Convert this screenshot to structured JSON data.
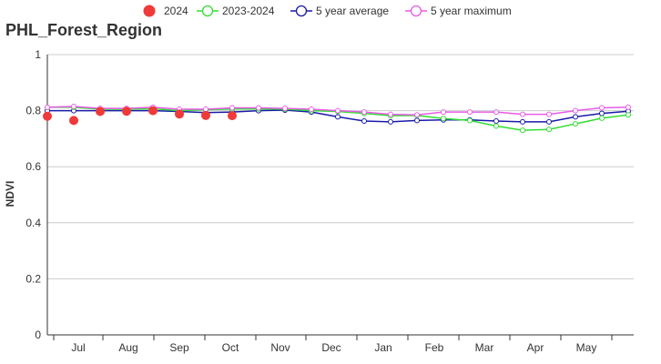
{
  "chart_data": {
    "type": "line",
    "title": "PHL_Forest_Region",
    "xlabel": "",
    "ylabel": "NDVI",
    "ylim": [
      0,
      1
    ],
    "yticks": [
      "0",
      "0.2",
      "0.4",
      "0.6",
      "0.8",
      "1"
    ],
    "month_labels": [
      "Jul",
      "Aug",
      "Sep",
      "Oct",
      "Nov",
      "Dec",
      "Jan",
      "Feb",
      "Mar",
      "Apr",
      "May"
    ],
    "grid": true,
    "legend_position": "top",
    "series": [
      {
        "name": "2024",
        "style": "markers",
        "color": "#f03a3a",
        "values": [
          0.78,
          0.765,
          0.797,
          0.798,
          0.8,
          0.788,
          0.783,
          0.782
        ]
      },
      {
        "name": "2023-2024",
        "style": "line",
        "color": "#33dd33",
        "values": [
          0.812,
          0.812,
          0.805,
          0.805,
          0.807,
          0.8,
          0.803,
          0.806,
          0.806,
          0.805,
          0.8,
          0.797,
          0.79,
          0.782,
          0.783,
          0.772,
          0.765,
          0.745,
          0.73,
          0.733,
          0.753,
          0.773,
          0.785
        ]
      },
      {
        "name": "5 year average",
        "style": "line",
        "color": "#1a1aaa",
        "values": [
          0.8,
          0.8,
          0.8,
          0.8,
          0.8,
          0.797,
          0.793,
          0.795,
          0.8,
          0.802,
          0.795,
          0.778,
          0.763,
          0.76,
          0.765,
          0.767,
          0.767,
          0.763,
          0.76,
          0.76,
          0.778,
          0.79,
          0.798
        ]
      },
      {
        "name": "5 year maximum",
        "style": "line",
        "color": "#e85ce8",
        "values": [
          0.812,
          0.815,
          0.808,
          0.808,
          0.812,
          0.805,
          0.805,
          0.81,
          0.81,
          0.808,
          0.805,
          0.8,
          0.795,
          0.787,
          0.785,
          0.795,
          0.795,
          0.795,
          0.787,
          0.787,
          0.8,
          0.81,
          0.812
        ]
      }
    ]
  }
}
